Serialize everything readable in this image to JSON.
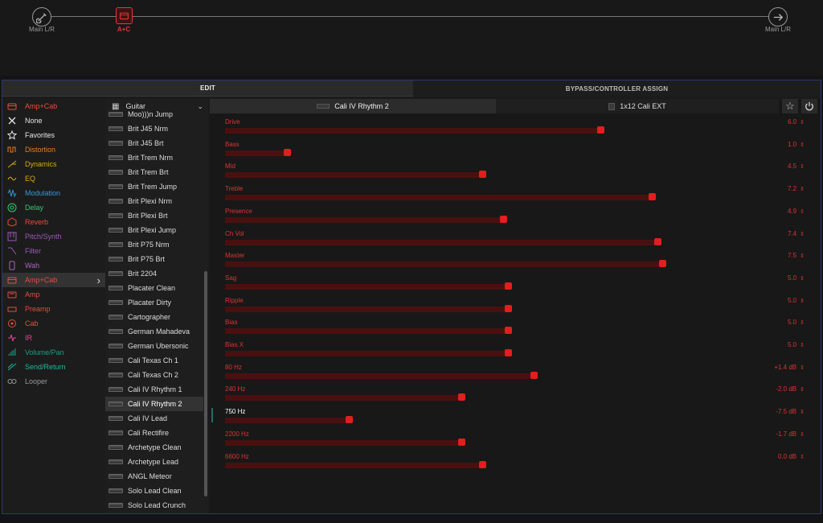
{
  "signal_flow": {
    "input_label": "Main L/R",
    "block_label": "A+C",
    "output_label": "Main L/R"
  },
  "tabs": {
    "edit": "EDIT",
    "bypass": "BYPASS/CONTROLLER ASSIGN"
  },
  "category_header": "Amp+Cab",
  "model_header": "Guitar",
  "categories": [
    {
      "label": "None",
      "icon": "x-icon",
      "color": "#e6e6e6"
    },
    {
      "label": "Favorites",
      "icon": "star-icon",
      "color": "#e6e6e6"
    },
    {
      "label": "Distortion",
      "icon": "distortion-icon",
      "color": "#e67e22"
    },
    {
      "label": "Dynamics",
      "icon": "dynamics-icon",
      "color": "#d4ac0d"
    },
    {
      "label": "EQ",
      "icon": "eq-icon",
      "color": "#d4ac0d"
    },
    {
      "label": "Modulation",
      "icon": "modulation-icon",
      "color": "#3498db"
    },
    {
      "label": "Delay",
      "icon": "delay-icon",
      "color": "#2ecc71"
    },
    {
      "label": "Reverb",
      "icon": "reverb-icon",
      "color": "#e74c3c"
    },
    {
      "label": "Pitch/Synth",
      "icon": "pitch-icon",
      "color": "#9b59b6"
    },
    {
      "label": "Filter",
      "icon": "filter-icon",
      "color": "#9b59b6"
    },
    {
      "label": "Wah",
      "icon": "wah-icon",
      "color": "#a569bd"
    },
    {
      "label": "Amp+Cab",
      "icon": "amp-cab-icon",
      "color": "#e74c3c"
    },
    {
      "label": "Amp",
      "icon": "amp-icon",
      "color": "#e74c3c"
    },
    {
      "label": "Preamp",
      "icon": "preamp-icon",
      "color": "#e74c3c"
    },
    {
      "label": "Cab",
      "icon": "cab-icon",
      "color": "#e74c3c"
    },
    {
      "label": "IR",
      "icon": "ir-icon",
      "color": "#e84393"
    },
    {
      "label": "Volume/Pan",
      "icon": "volume-icon",
      "color": "#16a085"
    },
    {
      "label": "Send/Return",
      "icon": "send-return-icon",
      "color": "#1abc9c"
    },
    {
      "label": "Looper",
      "icon": "looper-icon",
      "color": "#999999"
    }
  ],
  "models": [
    "Moo)))n Jump",
    "Brit J45 Nrm",
    "Brit J45 Brt",
    "Brit Trem Nrm",
    "Brit Trem Brt",
    "Brit Trem Jump",
    "Brit Plexi Nrm",
    "Brit Plexi Brt",
    "Brit Plexi Jump",
    "Brit P75 Nrm",
    "Brit P75 Brt",
    "Brit 2204",
    "Placater Clean",
    "Placater Dirty",
    "Cartographer",
    "German Mahadeva",
    "German Ubersonic",
    "Cali Texas Ch 1",
    "Cali Texas Ch 2",
    "Cali IV Rhythm 1",
    "Cali IV Rhythm 2",
    "Cali IV Lead",
    "Cali Rectifire",
    "Archetype Clean",
    "Archetype Lead",
    "ANGL Meteor",
    "Solo Lead Clean",
    "Solo Lead Crunch"
  ],
  "amp_title": "Cali IV Rhythm 2",
  "cab_title": "1x12 Cali EXT",
  "params": [
    {
      "label": "Drive",
      "value": "6.0",
      "fill": 0.73
    },
    {
      "label": "Bass",
      "value": "1.0",
      "fill": 0.12
    },
    {
      "label": "Mid",
      "value": "4.5",
      "fill": 0.5
    },
    {
      "label": "Treble",
      "value": "7.2",
      "fill": 0.83
    },
    {
      "label": "Presence",
      "value": "4.9",
      "fill": 0.54
    },
    {
      "label": "Ch Vol",
      "value": "7.4",
      "fill": 0.84
    },
    {
      "label": "Master",
      "value": "7.5",
      "fill": 0.85
    },
    {
      "label": "Sag",
      "value": "5.0",
      "fill": 0.55
    },
    {
      "label": "Ripple",
      "value": "5.0",
      "fill": 0.55
    },
    {
      "label": "Bias",
      "value": "5.0",
      "fill": 0.55
    },
    {
      "label": "Bias X",
      "value": "5.0",
      "fill": 0.55
    },
    {
      "label": "80 Hz",
      "value": "+1.4 dB",
      "fill": 0.6
    },
    {
      "label": "240 Hz",
      "value": "-2.0 dB",
      "fill": 0.46
    },
    {
      "label": "750 Hz",
      "value": "-7.5 dB",
      "fill": 0.24
    },
    {
      "label": "2200 Hz",
      "value": "-1.7 dB",
      "fill": 0.46
    },
    {
      "label": "6600 Hz",
      "value": "0.0 dB",
      "fill": 0.5
    }
  ],
  "colors": {
    "accent": "#e21e1e",
    "track": "#4a1010",
    "frame": "#2a3878"
  }
}
